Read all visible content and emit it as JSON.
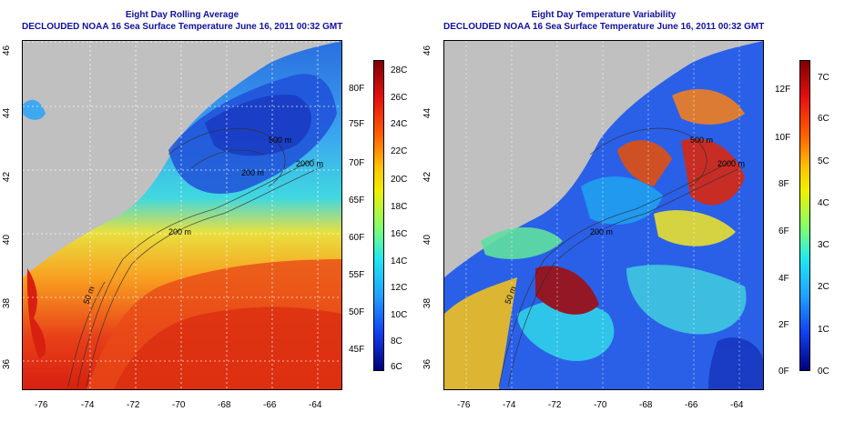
{
  "left_panel": {
    "title_line1": "Eight Day Rolling Average",
    "title_line2": "DECLOUDED NOAA 16 Sea Surface Temperature June 16, 2011 00:32 GMT",
    "lat_ticks": [
      "46",
      "44",
      "42",
      "40",
      "38",
      "36"
    ],
    "lon_ticks": [
      "-76",
      "-74",
      "-72",
      "-70",
      "-68",
      "-66",
      "-64"
    ],
    "contour_labels": [
      "200 m",
      "50 m",
      "2000 m",
      "500 m",
      "200 m"
    ],
    "colorbar": {
      "fahrenheit": [
        "80F",
        "75F",
        "70F",
        "65F",
        "60F",
        "55F",
        "50F",
        "45F"
      ],
      "celsius": [
        "28C",
        "26C",
        "24C",
        "22C",
        "20C",
        "18C",
        "16C",
        "14C",
        "12C",
        "10C",
        "8C",
        "6C"
      ]
    }
  },
  "right_panel": {
    "title_line1": "Eight Day Temperature Variability",
    "title_line2": "DECLOUDED NOAA 16 Sea Surface Temperature June 16, 2011 00:32 GMT",
    "lat_ticks": [
      "46",
      "44",
      "42",
      "40",
      "38",
      "36"
    ],
    "lon_ticks": [
      "-76",
      "-74",
      "-72",
      "-70",
      "-68",
      "-66",
      "-64"
    ],
    "contour_labels": [
      "200 m",
      "50 m",
      "2000 m",
      "500 m"
    ],
    "colorbar": {
      "fahrenheit": [
        "12F",
        "10F",
        "8F",
        "6F",
        "4F",
        "2F",
        "0F"
      ],
      "celsius": [
        "7C",
        "6C",
        "5C",
        "4C",
        "3C",
        "2C",
        "1C",
        "0C"
      ]
    }
  },
  "colors": {
    "title": "#1010a0",
    "land": "#c0c0c0"
  }
}
